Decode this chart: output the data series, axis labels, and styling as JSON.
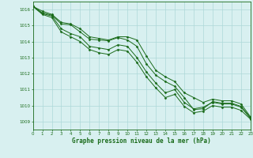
{
  "title": "Graphe pression niveau de la mer (hPa)",
  "background_color": "#d8f0f0",
  "grid_color": "#add8d8",
  "line_color": "#1a6b1a",
  "x_min": 0,
  "x_max": 23,
  "y_min": 1008.5,
  "y_max": 1016.5,
  "y_ticks": [
    1009,
    1010,
    1011,
    1012,
    1013,
    1014,
    1015,
    1016
  ],
  "x_ticks": [
    0,
    1,
    2,
    3,
    4,
    5,
    6,
    7,
    8,
    9,
    10,
    11,
    12,
    13,
    14,
    15,
    16,
    17,
    18,
    19,
    20,
    21,
    22,
    23
  ],
  "series": [
    [
      1016.2,
      1015.9,
      1015.7,
      1015.2,
      1015.1,
      1014.8,
      1014.3,
      1014.2,
      1014.1,
      1014.3,
      1014.3,
      1014.1,
      1013.1,
      1012.2,
      1011.8,
      1011.5,
      1010.8,
      1010.5,
      1010.2,
      1010.4,
      1010.3,
      1010.3,
      1010.1,
      1009.3
    ],
    [
      1016.2,
      1015.8,
      1015.65,
      1015.1,
      1015.05,
      1014.6,
      1014.15,
      1014.1,
      1014.05,
      1014.25,
      1014.1,
      1013.7,
      1012.6,
      1011.9,
      1011.5,
      1011.2,
      1010.5,
      1009.75,
      1009.8,
      1010.25,
      1010.15,
      1010.15,
      1009.95,
      1009.25
    ],
    [
      1016.2,
      1015.75,
      1015.6,
      1014.8,
      1014.5,
      1014.3,
      1013.7,
      1013.6,
      1013.5,
      1013.8,
      1013.7,
      1013.0,
      1012.1,
      1011.4,
      1010.8,
      1011.0,
      1010.2,
      1009.8,
      1009.9,
      1010.2,
      1010.1,
      1010.1,
      1009.9,
      1009.2
    ],
    [
      1016.2,
      1015.7,
      1015.5,
      1014.6,
      1014.3,
      1014.0,
      1013.5,
      1013.3,
      1013.2,
      1013.5,
      1013.4,
      1012.7,
      1011.8,
      1011.1,
      1010.5,
      1010.7,
      1009.95,
      1009.55,
      1009.65,
      1010.0,
      1009.9,
      1009.9,
      1009.7,
      1009.15
    ]
  ]
}
